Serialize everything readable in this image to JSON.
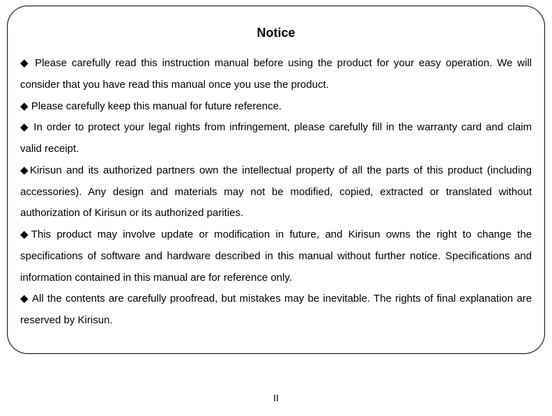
{
  "title": "Notice",
  "items": [
    "Please carefully read this instruction manual before using the product for your easy operation. We will consider that you have read this manual once you use the product.",
    "Please carefully keep this manual for future reference.",
    "In order to protect your legal rights from infringement, please carefully fill in the warranty card and claim valid receipt.",
    "Kirisun and its authorized partners own the intellectual property of all the parts of this product (including accessories). Any design and materials may not be modified, copied, extracted or translated without authorization of Kirisun or its authorized parities.",
    "This product may involve update or modification in future, and Kirisun owns the right to change the specifications of software and hardware described in this manual without further notice. Specifications and information contained in this manual are for reference only.",
    "All the contents are carefully proofread, but mistakes may be inevitable. The rights of final explanation are reserved by Kirisun."
  ],
  "bullet_char": "◆",
  "spaced_bullets": [
    0,
    1,
    2,
    5
  ],
  "page_number": "II",
  "colors": {
    "background": "#ffffff",
    "text": "#000000",
    "border": "#000000"
  },
  "layout": {
    "box_border_radius": 30,
    "box_border_width": 1.5,
    "title_fontsize": 18,
    "body_fontsize": 15,
    "line_height": 2.05
  }
}
